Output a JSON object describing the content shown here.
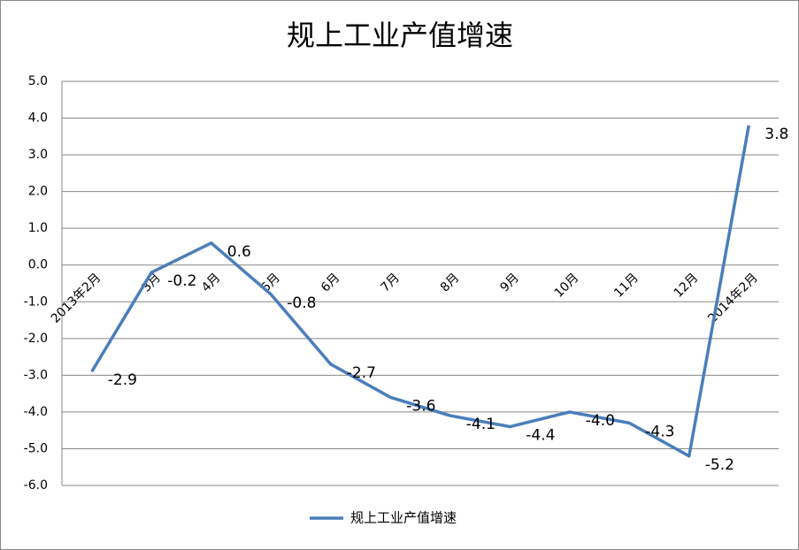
{
  "chart_data": {
    "type": "line",
    "title": "规上工业产值增速",
    "categories": [
      "2013年2月",
      "3月",
      "4月",
      "5月",
      "6月",
      "7月",
      "8月",
      "9月",
      "10月",
      "11月",
      "12月",
      "2014年2月"
    ],
    "series": [
      {
        "name": "规上工业产值增速",
        "color": "#4a7ebb",
        "values": [
          -2.9,
          -0.2,
          0.6,
          -0.8,
          -2.7,
          -3.6,
          -4.1,
          -4.4,
          -4.0,
          -4.3,
          -5.2,
          3.8
        ],
        "value_labels": [
          "-2.9",
          "-0.2",
          "0.6",
          "-0.8",
          "-2.7",
          "-3.6",
          "-4.1",
          "-4.4",
          "-4.0",
          "-4.3",
          "-5.2",
          "3.8"
        ]
      }
    ],
    "ylim": [
      -6,
      5
    ],
    "yticks": [
      {
        "value": 5,
        "label": "5.0"
      },
      {
        "value": 4,
        "label": "4.0"
      },
      {
        "value": 3,
        "label": "3.0"
      },
      {
        "value": 2,
        "label": "2.0"
      },
      {
        "value": 1,
        "label": "1.0"
      },
      {
        "value": 0,
        "label": "0.0"
      },
      {
        "value": -1,
        "label": "-1.0"
      },
      {
        "value": -2,
        "label": "-2.0"
      },
      {
        "value": -3,
        "label": "-3.0"
      },
      {
        "value": -4,
        "label": "-4.0"
      },
      {
        "value": -5,
        "label": "-5.0"
      },
      {
        "value": -6,
        "label": "-6.0"
      }
    ],
    "grid": true,
    "legend": "bottom"
  }
}
